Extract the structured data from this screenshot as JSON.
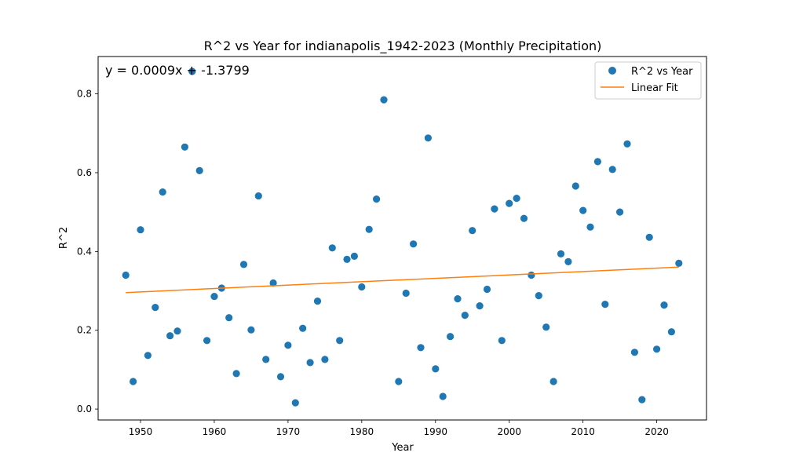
{
  "chart_data": {
    "type": "scatter",
    "title": "R^2 vs Year for indianapolis_1942-2023 (Monthly Precipitation)",
    "xlabel": "Year",
    "ylabel": "R^2",
    "xlim": [
      1944.25,
      2026.75
    ],
    "ylim": [
      -0.0277,
      0.8948
    ],
    "xticks": [
      1950,
      1960,
      1970,
      1980,
      1990,
      2000,
      2010,
      2020
    ],
    "yticks": [
      0.0,
      0.2,
      0.4,
      0.6,
      0.8
    ],
    "xtick_labels": [
      "1950",
      "1960",
      "1970",
      "1980",
      "1990",
      "2000",
      "2010",
      "2020"
    ],
    "ytick_labels": [
      "0.0",
      "0.2",
      "0.4",
      "0.6",
      "0.8"
    ],
    "grid": false,
    "legend_position": "top-right",
    "annotation": "y = 0.0009x + -1.3799",
    "series": [
      {
        "name": "R^2 vs Year",
        "kind": "scatter",
        "color": "#1f77b4",
        "points": [
          [
            1948,
            0.34
          ],
          [
            1949,
            0.07
          ],
          [
            1950,
            0.455
          ],
          [
            1951,
            0.136
          ],
          [
            1952,
            0.258
          ],
          [
            1953,
            0.551
          ],
          [
            1954,
            0.186
          ],
          [
            1955,
            0.198
          ],
          [
            1956,
            0.665
          ],
          [
            1957,
            0.857
          ],
          [
            1958,
            0.605
          ],
          [
            1959,
            0.174
          ],
          [
            1960,
            0.286
          ],
          [
            1961,
            0.307
          ],
          [
            1962,
            0.232
          ],
          [
            1963,
            0.09
          ],
          [
            1964,
            0.367
          ],
          [
            1965,
            0.201
          ],
          [
            1966,
            0.541
          ],
          [
            1967,
            0.126
          ],
          [
            1968,
            0.32
          ],
          [
            1969,
            0.082
          ],
          [
            1970,
            0.162
          ],
          [
            1971,
            0.016
          ],
          [
            1972,
            0.205
          ],
          [
            1973,
            0.118
          ],
          [
            1974,
            0.274
          ],
          [
            1975,
            0.126
          ],
          [
            1976,
            0.409
          ],
          [
            1977,
            0.174
          ],
          [
            1978,
            0.38
          ],
          [
            1979,
            0.388
          ],
          [
            1980,
            0.31
          ],
          [
            1981,
            0.456
          ],
          [
            1982,
            0.533
          ],
          [
            1983,
            0.785
          ],
          [
            1985,
            0.07
          ],
          [
            1986,
            0.294
          ],
          [
            1987,
            0.419
          ],
          [
            1988,
            0.156
          ],
          [
            1989,
            0.688
          ],
          [
            1990,
            0.102
          ],
          [
            1991,
            0.032
          ],
          [
            1992,
            0.184
          ],
          [
            1993,
            0.28
          ],
          [
            1994,
            0.238
          ],
          [
            1995,
            0.453
          ],
          [
            1996,
            0.262
          ],
          [
            1997,
            0.304
          ],
          [
            1998,
            0.508
          ],
          [
            1999,
            0.174
          ],
          [
            2000,
            0.522
          ],
          [
            2001,
            0.535
          ],
          [
            2002,
            0.484
          ],
          [
            2003,
            0.34
          ],
          [
            2004,
            0.288
          ],
          [
            2005,
            0.208
          ],
          [
            2006,
            0.07
          ],
          [
            2007,
            0.394
          ],
          [
            2008,
            0.374
          ],
          [
            2009,
            0.566
          ],
          [
            2010,
            0.504
          ],
          [
            2011,
            0.462
          ],
          [
            2012,
            0.628
          ],
          [
            2013,
            0.266
          ],
          [
            2014,
            0.608
          ],
          [
            2015,
            0.5
          ],
          [
            2016,
            0.673
          ],
          [
            2017,
            0.144
          ],
          [
            2018,
            0.024
          ],
          [
            2019,
            0.436
          ],
          [
            2020,
            0.152
          ],
          [
            2021,
            0.264
          ],
          [
            2022,
            0.196
          ],
          [
            2023,
            0.37
          ]
        ]
      },
      {
        "name": "Linear Fit",
        "kind": "line",
        "color": "#ff7f0e",
        "points": [
          [
            1948,
            0.2957
          ],
          [
            2023,
            0.3603
          ]
        ]
      }
    ]
  }
}
